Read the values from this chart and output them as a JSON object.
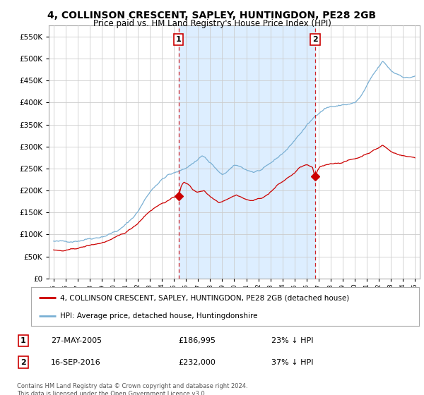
{
  "title": "4, COLLINSON CRESCENT, SAPLEY, HUNTINGDON, PE28 2GB",
  "subtitle": "Price paid vs. HM Land Registry's House Price Index (HPI)",
  "red_label": "4, COLLINSON CRESCENT, SAPLEY, HUNTINGDON, PE28 2GB (detached house)",
  "blue_label": "HPI: Average price, detached house, Huntingdonshire",
  "transaction1_date": "27-MAY-2005",
  "transaction1_price": "£186,995",
  "transaction1_hpi": "23% ↓ HPI",
  "transaction2_date": "16-SEP-2016",
  "transaction2_price": "£232,000",
  "transaction2_hpi": "37% ↓ HPI",
  "footnote": "Contains HM Land Registry data © Crown copyright and database right 2024.\nThis data is licensed under the Open Government Licence v3.0.",
  "ylim_min": 0,
  "ylim_max": 575000,
  "red_color": "#cc0000",
  "blue_color": "#7ab0d4",
  "blue_fill_color": "#ddeeff",
  "grid_color": "#cccccc",
  "background_color": "#ffffff",
  "marker1_x_year": 2005.38,
  "marker1_y_red": 186995,
  "marker2_x_year": 2016.71,
  "marker2_y_red": 232000,
  "xlim_min": 1994.6,
  "xlim_max": 2025.4
}
